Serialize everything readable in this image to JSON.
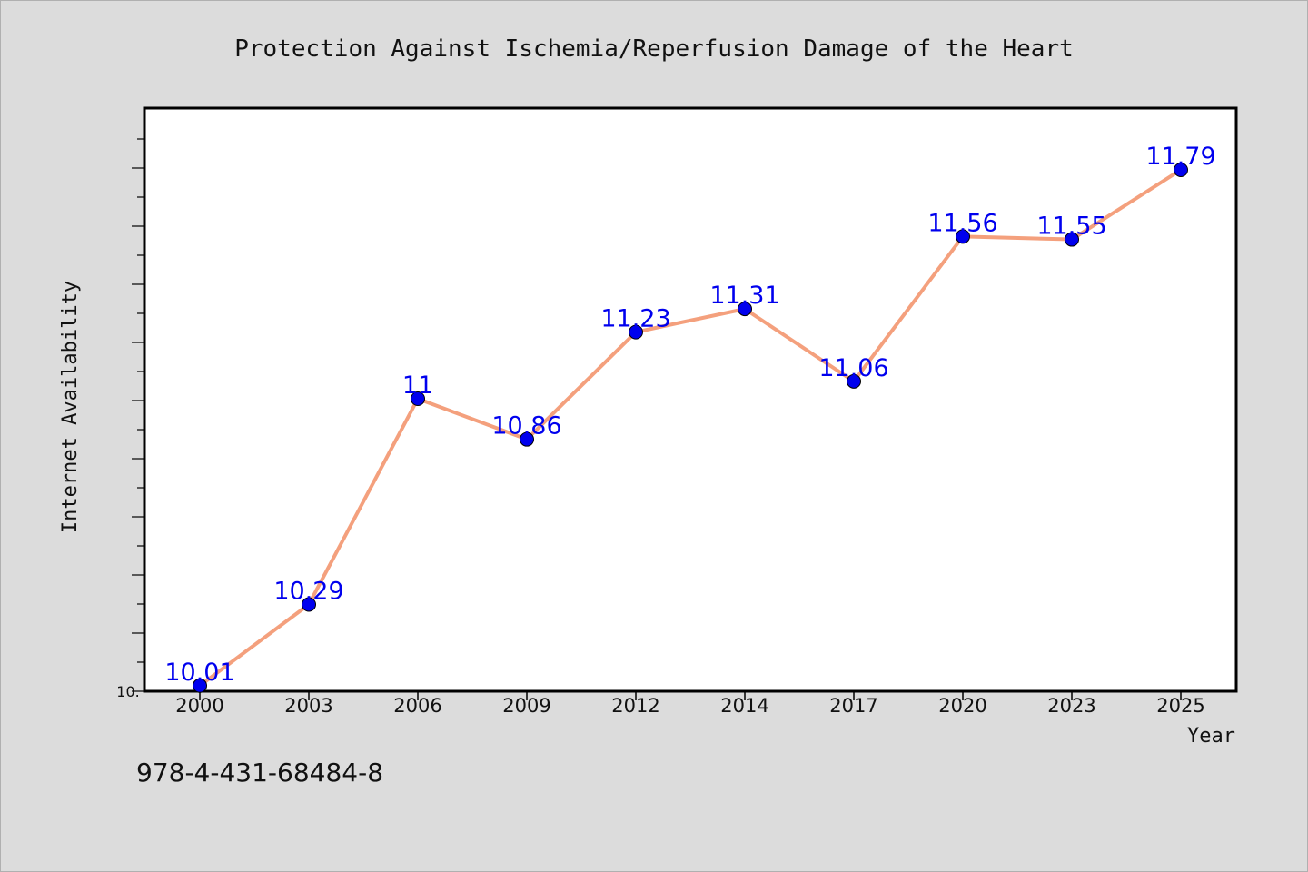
{
  "chart_data": {
    "type": "line",
    "title": "Protection Against Ischemia/Reperfusion Damage of the Heart",
    "xlabel": "Year",
    "ylabel": "Internet Availability",
    "categories": [
      "2000",
      "2003",
      "2006",
      "2009",
      "2012",
      "2014",
      "2017",
      "2020",
      "2023",
      "2025"
    ],
    "series": [
      {
        "values": [
          10.01,
          10.29,
          11,
          10.86,
          11.23,
          11.31,
          11.06,
          11.56,
          11.55,
          11.79
        ],
        "data_labels": [
          "10.01",
          "10.29",
          "11",
          "10.86",
          "11.23",
          "11.31",
          "11.06",
          "11.56",
          "11.55",
          "11.79"
        ],
        "line_color": "#f4a07d",
        "marker_color": "#0000ee",
        "label_color": "#0000ee"
      }
    ],
    "ylim": [
      10.0,
      12.0
    ],
    "y_tick_label": "10.",
    "grid": false,
    "legend": "none"
  },
  "isbn": "978-4-431-68484-8",
  "colors": {
    "background": "#dcdcdc",
    "plot_background": "#ffffff",
    "axis": "#000000"
  }
}
